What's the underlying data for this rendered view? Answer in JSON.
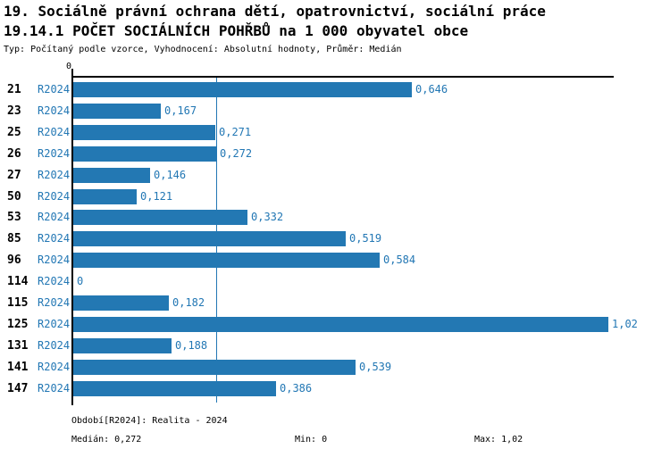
{
  "header": {
    "title_line1": "19. Sociálně právní ochrana dětí, opatrovnictví, sociální práce",
    "title_line2": "19.14.1 POČET SOCIÁLNÍCH POHŘBŮ na 1 000 obyvatel obce",
    "subtitle": "Typ: Počítaný podle vzorce, Vyhodnocení: Absolutní hodnoty, Průměr: Medián"
  },
  "chart_data": {
    "type": "bar",
    "orientation": "horizontal",
    "categories": [
      "21",
      "23",
      "25",
      "26",
      "27",
      "50",
      "53",
      "85",
      "96",
      "114",
      "115",
      "125",
      "131",
      "141",
      "147"
    ],
    "series_label": "R2024",
    "values": [
      0.646,
      0.167,
      0.271,
      0.272,
      0.146,
      0.121,
      0.332,
      0.519,
      0.584,
      0,
      0.182,
      1.02,
      0.188,
      0.539,
      0.386
    ],
    "value_labels": [
      "0,646",
      "0,167",
      "0,271",
      "0,272",
      "0,146",
      "0,121",
      "0,332",
      "0,519",
      "0,584",
      "0",
      "0,182",
      "1,02",
      "0,188",
      "0,539",
      "0,386"
    ],
    "xlim": [
      0,
      1.02
    ],
    "axis_zero_label": "0",
    "median_line_value": 0.272,
    "grid": "median-line-only",
    "legend_position": "bottom",
    "colors": {
      "bar": "#2378b3",
      "value_label": "#2277b4",
      "series_label": "#2277b4",
      "median_line": "#2277b4",
      "legend_text": "#186a8d",
      "axis": "#000000"
    }
  },
  "footer": {
    "period": "Období[R2024]: Realita - 2024",
    "median": "Medián: 0,272",
    "min": "Min: 0",
    "max": "Max: 1,02"
  }
}
